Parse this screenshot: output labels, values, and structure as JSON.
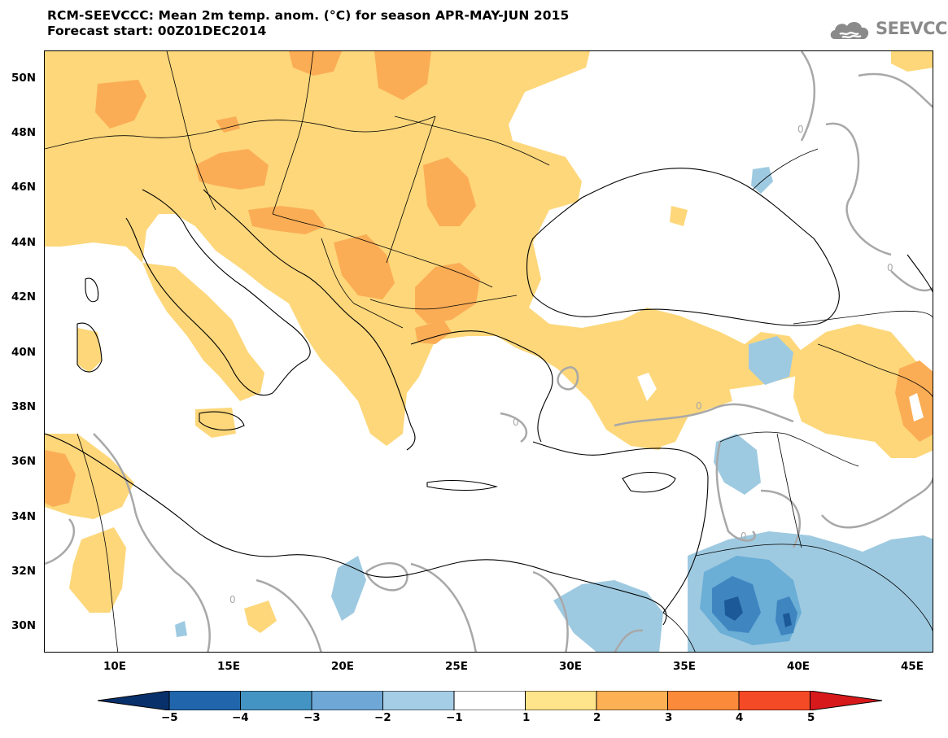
{
  "title": {
    "line1": "RCM-SEEVCCC: Mean 2m temp. anom. (°C) for season APR-MAY-JUN 2015",
    "line2": "Forecast start: 00Z01DEC2014"
  },
  "logo": {
    "text": "SEEVCCC",
    "icon": "cloud-icon"
  },
  "map": {
    "region": "Balkans / Eastern Mediterranean",
    "lon_range": [
      7,
      46
    ],
    "lat_range": [
      29,
      51
    ],
    "lat_labels": [
      "50N",
      "48N",
      "46N",
      "44N",
      "42N",
      "40N",
      "38N",
      "36N",
      "34N",
      "32N",
      "30N"
    ],
    "lon_labels": [
      "10E",
      "15E",
      "20E",
      "25E",
      "30E",
      "35E",
      "40E",
      "45E"
    ],
    "contour_label": "0",
    "colors": {
      "warm_1_2": "#fdd77a",
      "warm_2_3": "#fbad55",
      "cold_-1_-2": "#9ecae1",
      "cold_-2_-3": "#6baed6",
      "cold_-3_-4": "#3f86c1",
      "cold_-4_-5": "#1c5998",
      "zero_contour": "#a8a8a8"
    }
  },
  "colorbar": {
    "labels": [
      "−5",
      "−4",
      "−3",
      "−2",
      "−1",
      "1",
      "2",
      "3",
      "4",
      "5"
    ],
    "colors": [
      "#08306b",
      "#2166ac",
      "#4393c3",
      "#6fa8d6",
      "#a6cde6",
      "#ffffff",
      "#fee48a",
      "#fdb154",
      "#fb8a3a",
      "#f54a26",
      "#d7191c"
    ]
  }
}
